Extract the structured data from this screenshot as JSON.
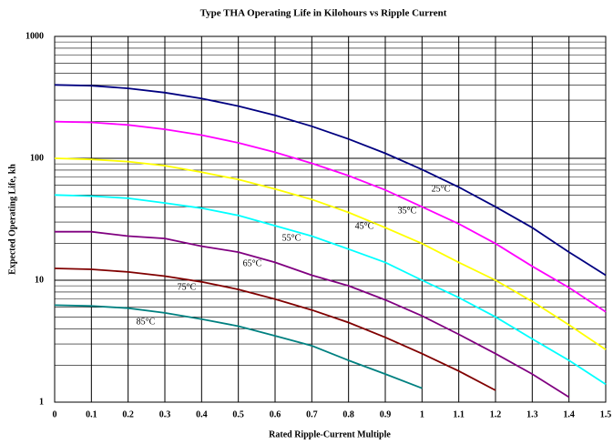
{
  "chart_data": {
    "type": "line",
    "title": "Type THA Operating Life in Kilohours vs Ripple Current",
    "xlabel": "Rated Ripple-Current Multiple",
    "ylabel": "Expected Operating Life, kh",
    "x": [
      0,
      0.1,
      0.2,
      0.3,
      0.4,
      0.5,
      0.6,
      0.7,
      0.8,
      0.9,
      1,
      1.1,
      1.2,
      1.3,
      1.4,
      1.5
    ],
    "series": [
      {
        "name": "25°C",
        "color": "#000080",
        "values": [
          400,
          394,
          375,
          346,
          310,
          268,
          225,
          183,
          144,
          110,
          81,
          58,
          40,
          27,
          17,
          11
        ]
      },
      {
        "name": "35°C",
        "color": "#ff00ff",
        "values": [
          200,
          197,
          188,
          173,
          155,
          134,
          112,
          91,
          72,
          55,
          40,
          29,
          20,
          13,
          8.7,
          5.5
        ]
      },
      {
        "name": "45°C",
        "color": "#ffff00",
        "values": [
          100,
          98,
          94,
          87,
          77,
          67,
          56,
          46,
          36,
          27,
          20,
          14,
          10,
          6.7,
          4.3,
          2.7
        ]
      },
      {
        "name": "55°C",
        "color": "#00ffff",
        "values": [
          50,
          49,
          47,
          43,
          39,
          34,
          28,
          23,
          18,
          14,
          10,
          7.2,
          5,
          3.3,
          2.2,
          1.4
        ]
      },
      {
        "name": "65°C",
        "color": "#800080",
        "values": [
          25,
          25,
          23,
          22,
          19,
          17,
          14,
          11,
          9,
          6.9,
          5.1,
          3.6,
          2.5,
          1.7,
          1.1,
          null
        ]
      },
      {
        "name": "75°C",
        "color": "#800000",
        "values": [
          12.5,
          12.3,
          11.7,
          10.8,
          9.7,
          8.4,
          7,
          5.7,
          4.5,
          3.4,
          2.5,
          1.8,
          1.25,
          null,
          null,
          null
        ]
      },
      {
        "name": "85°C",
        "color": "#008080",
        "values": [
          6.25,
          6.15,
          5.9,
          5.4,
          4.8,
          4.2,
          3.5,
          2.9,
          2.2,
          1.7,
          1.3,
          null,
          null,
          null,
          null,
          null
        ]
      }
    ],
    "xlim": [
      0,
      1.5
    ],
    "xticks": [
      0,
      0.1,
      0.2,
      0.3,
      0.4,
      0.5,
      0.6,
      0.7,
      0.8,
      0.9,
      1,
      1.1,
      1.2,
      1.3,
      1.4,
      1.5
    ],
    "ylim": [
      1,
      1000
    ],
    "yticks": [
      1,
      10,
      100,
      1000
    ],
    "log_y": true,
    "grid": true
  }
}
